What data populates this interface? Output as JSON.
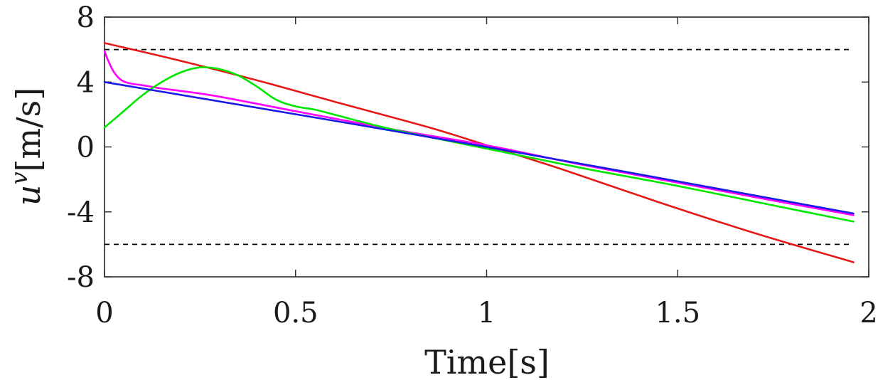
{
  "chart_data": {
    "type": "line",
    "xlabel": "Time[s]",
    "ylabel": "u^v[m/s]",
    "xlim": [
      0,
      2
    ],
    "ylim": [
      -8,
      8
    ],
    "xticks": [
      0,
      0.5,
      1,
      1.5,
      2
    ],
    "xtick_labels": [
      "0",
      "0.5",
      "1",
      "1.5",
      "2"
    ],
    "yticks": [
      -8,
      -4,
      0,
      4,
      8
    ],
    "ytick_labels": [
      "-8",
      "-4",
      "0",
      "4",
      "8"
    ],
    "grid": false,
    "reference_lines": [
      {
        "y": 6,
        "style": "dashed",
        "color": "#000000"
      },
      {
        "y": -6,
        "style": "dashed",
        "color": "#000000"
      }
    ],
    "series": [
      {
        "color": "#e61919",
        "x": [
          0,
          0.2,
          0.4,
          0.6,
          0.85,
          1.0,
          1.2,
          1.45,
          1.7,
          1.96
        ],
        "y": [
          6.4,
          5.3,
          4.1,
          2.8,
          1.2,
          0.1,
          -1.4,
          -3.4,
          -5.3,
          -7.1
        ]
      },
      {
        "color": "#ff00ff",
        "x": [
          0,
          0.01,
          0.025,
          0.045,
          0.07,
          0.1,
          0.15,
          0.2,
          0.3,
          0.5,
          0.75,
          1.0,
          1.25,
          1.5,
          1.75,
          1.96
        ],
        "y": [
          5.9,
          5.3,
          4.6,
          4.1,
          3.9,
          3.8,
          3.6,
          3.45,
          3.1,
          2.2,
          1.1,
          0.1,
          -1.1,
          -2.2,
          -3.3,
          -4.2
        ]
      },
      {
        "color": "#00e600",
        "x": [
          0,
          0.05,
          0.1,
          0.15,
          0.2,
          0.25,
          0.3,
          0.35,
          0.4,
          0.45,
          0.5,
          0.55,
          0.6,
          0.75,
          1.0,
          1.25,
          1.5,
          1.75,
          1.96
        ],
        "y": [
          1.2,
          2.2,
          3.2,
          4.0,
          4.6,
          4.9,
          4.8,
          4.4,
          3.7,
          2.9,
          2.5,
          2.3,
          2.0,
          1.1,
          -0.1,
          -1.3,
          -2.4,
          -3.6,
          -4.6
        ]
      },
      {
        "color": "#1a1ae6",
        "x": [
          0,
          1.0,
          1.96
        ],
        "y": [
          4.0,
          0.0,
          -4.1
        ]
      }
    ]
  }
}
